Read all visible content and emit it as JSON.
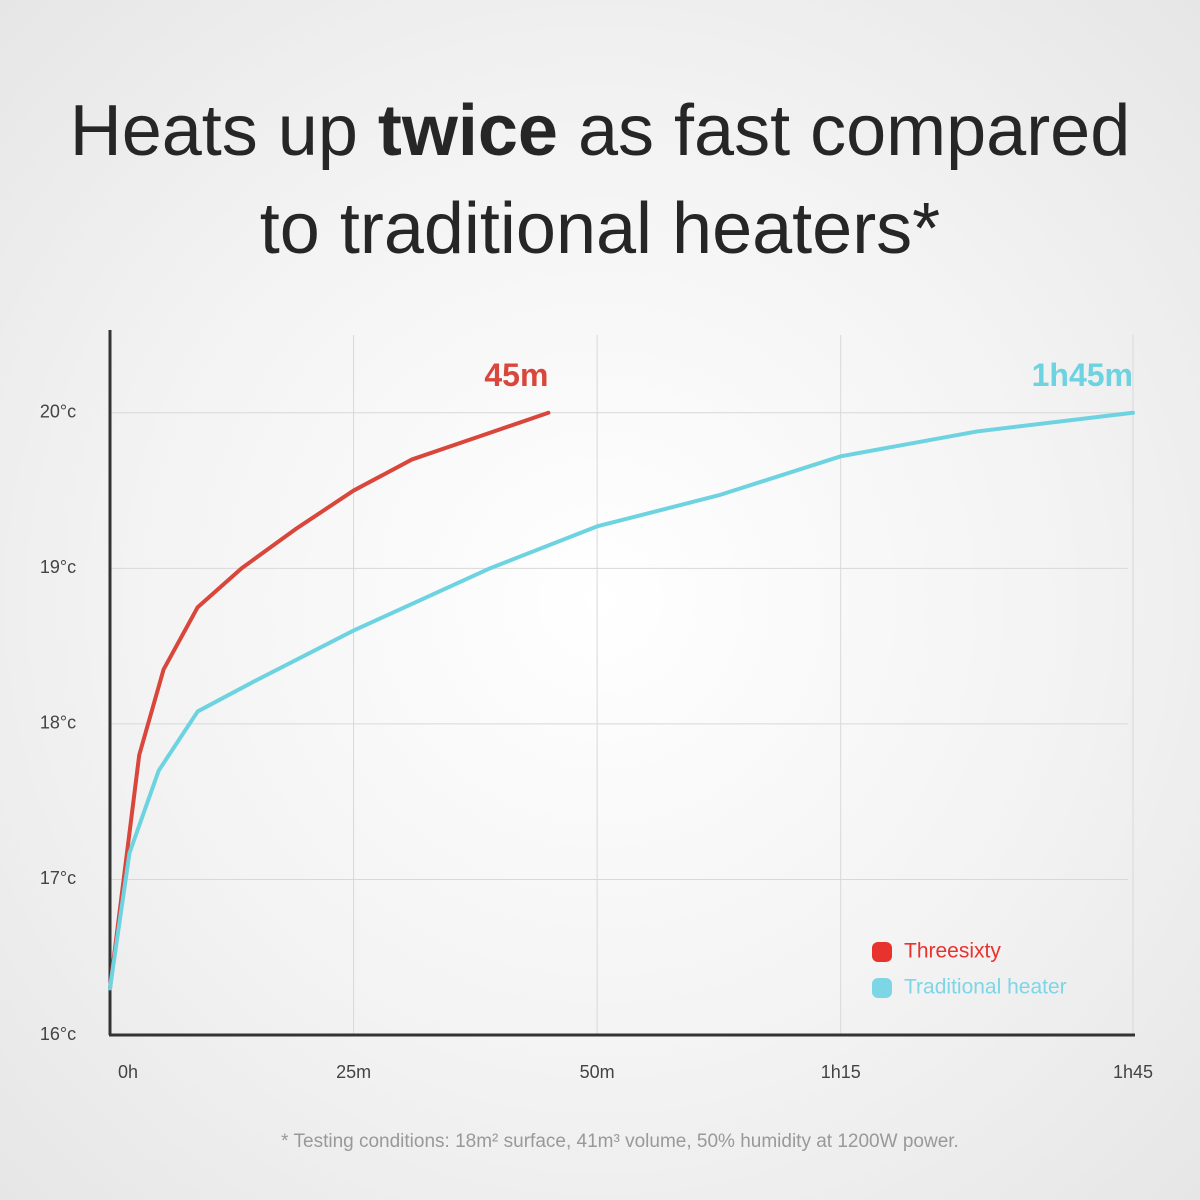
{
  "chart_data": {
    "type": "line",
    "title_segments": [
      "Heats up ",
      "twice",
      " as fast compared",
      "to traditional heaters*"
    ],
    "footnote": "* Testing conditions: 18m² surface, 41m³ volume, 50% humidity at 1200W power.",
    "xlim": [
      0,
      105
    ],
    "xticks": [
      {
        "value": 0,
        "label": "0h"
      },
      {
        "value": 25,
        "label": "25m"
      },
      {
        "value": 50,
        "label": "50m"
      },
      {
        "value": 75,
        "label": "1h15"
      },
      {
        "value": 105,
        "label": "1h45"
      }
    ],
    "ylim": [
      16,
      20.5
    ],
    "yticks": [
      {
        "value": 16,
        "label": "16°c"
      },
      {
        "value": 17,
        "label": "17°c"
      },
      {
        "value": 18,
        "label": "18°c"
      },
      {
        "value": 19,
        "label": "19°c"
      },
      {
        "value": 20,
        "label": "20°c"
      }
    ],
    "grid": true,
    "legend": "bottom-right",
    "series": [
      {
        "name": "Threesixty",
        "color": "#d9463b",
        "marker_color": "#e8322e",
        "end_label": "45m",
        "x": [
          0,
          1.5,
          3,
          5.5,
          9,
          13.5,
          19,
          25,
          31,
          38,
          45
        ],
        "values": [
          16.3,
          17.05,
          17.8,
          18.35,
          18.75,
          19.0,
          19.25,
          19.5,
          19.7,
          19.85,
          20
        ]
      },
      {
        "name": "Traditional heater",
        "color": "#6dd3e0",
        "marker_color": "#7dd6e6",
        "end_label": "1h45m",
        "x": [
          0,
          2,
          5,
          9,
          15,
          25,
          39,
          50,
          62.5,
          75,
          89,
          105
        ],
        "values": [
          16.3,
          17.17,
          17.7,
          18.08,
          18.28,
          18.6,
          19.0,
          19.27,
          19.47,
          19.72,
          19.88,
          20
        ]
      }
    ]
  }
}
